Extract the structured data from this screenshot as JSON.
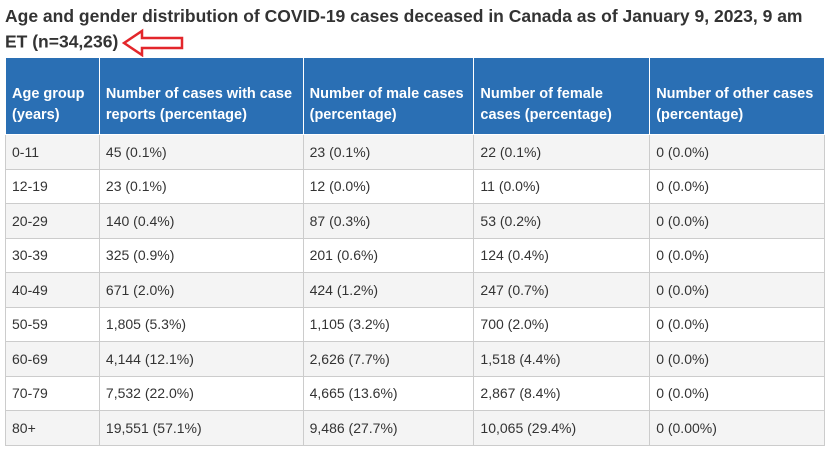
{
  "title": "Age and gender distribution of COVID-19 cases deceased in Canada as of January 9, 2023, 9 am ET (n=34,236)",
  "table": {
    "headers": [
      "Age group (years)",
      "Number of cases with case reports (percentage)",
      "Number of male cases (percentage)",
      "Number of female cases (percentage)",
      "Number of other cases (percentage)"
    ],
    "rows": [
      [
        "0-11",
        "45 (0.1%)",
        "23 (0.1%)",
        "22 (0.1%)",
        "0 (0.0%)"
      ],
      [
        "12-19",
        "23 (0.1%)",
        "12 (0.0%)",
        "11 (0.0%)",
        "0 (0.0%)"
      ],
      [
        "20-29",
        "140 (0.4%)",
        "87 (0.3%)",
        "53 (0.2%)",
        "0 (0.0%)"
      ],
      [
        "30-39",
        "325 (0.9%)",
        "201 (0.6%)",
        "124 (0.4%)",
        "0 (0.0%)"
      ],
      [
        "40-49",
        "671 (2.0%)",
        "424 (1.2%)",
        "247 (0.7%)",
        "0 (0.0%)"
      ],
      [
        "50-59",
        "1,805 (5.3%)",
        "1,105 (3.2%)",
        "700 (2.0%)",
        "0 (0.0%)"
      ],
      [
        "60-69",
        "4,144 (12.1%)",
        "2,626 (7.7%)",
        "1,518 (4.4%)",
        "0 (0.0%)"
      ],
      [
        "70-79",
        "7,532 (22.0%)",
        "4,665 (13.6%)",
        "2,867 (8.4%)",
        "0 (0.0%)"
      ],
      [
        "80+",
        "19,551 (57.1%)",
        "9,486 (27.7%)",
        "10,065 (29.4%)",
        "0 (0.00%)"
      ]
    ]
  }
}
